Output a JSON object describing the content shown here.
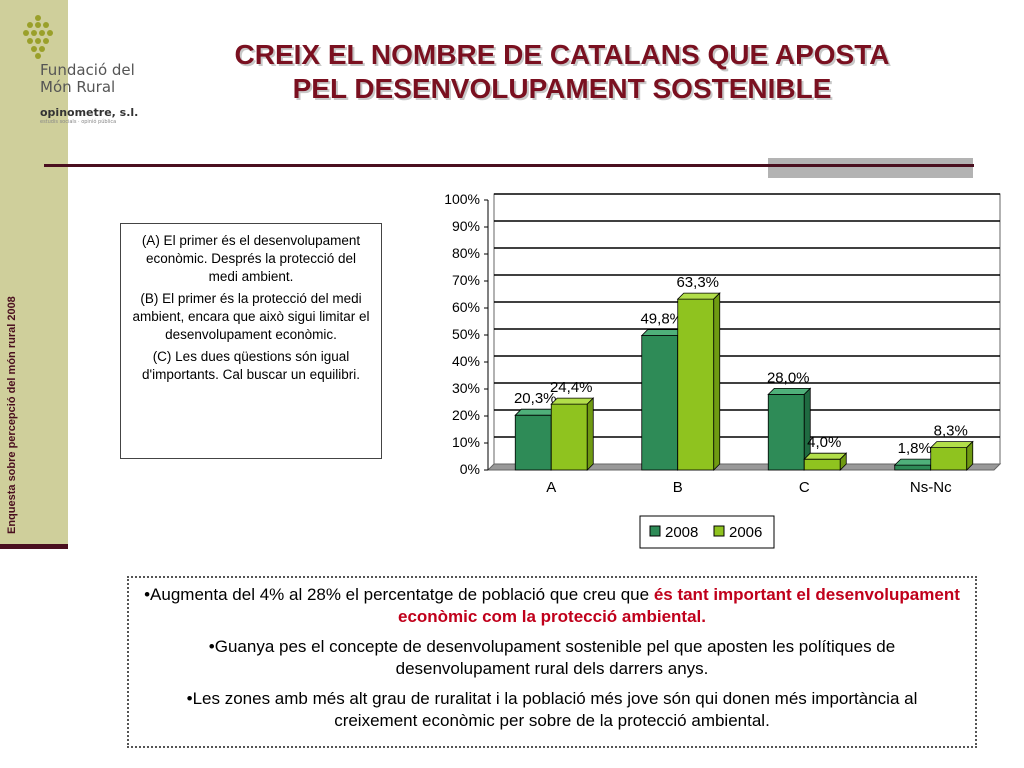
{
  "sidebar": {
    "vertical_text": "Enquesta sobre percepció del món rural 2008"
  },
  "logo": {
    "line1": "Fundació del",
    "line2": "Món Rural",
    "partner": "opinometre, s.l.",
    "partner_sub": "estudis socials · opinió pública"
  },
  "title": {
    "line1": "CREIX EL NOMBRE DE CATALANS QUE APOSTA",
    "line2": "PEL DESENVOLUPAMENT SOSTENIBLE"
  },
  "definitions": [
    "(A) El primer és el desenvolupament econòmic. Després la protecció del medi ambient.",
    "(B) El primer és la protecció del medi ambient, encara que això sigui limitar el desenvolupament econòmic.",
    "(C) Les dues qüestions són igual d'importants. Cal buscar un equilibri."
  ],
  "bullets": [
    {
      "prefix": "•Augmenta del 4% al 28% el percentatge de població que creu que ",
      "highlight": "és tant important el desenvolupament econòmic com la protecció ambiental.",
      "suffix": ""
    },
    {
      "prefix": "•Guanya pes el concepte de desenvolupament sostenible pel que aposten les polítiques de desenvolupament rural dels darrers anys.",
      "highlight": "",
      "suffix": ""
    },
    {
      "prefix": "•Les zones amb més alt grau de ruralitat i la població més jove són qui donen més importància al creixement econòmic per sobre de la protecció ambiental.",
      "highlight": "",
      "suffix": ""
    }
  ],
  "colors": {
    "series_2008": "#2e8b57",
    "series_2006": "#8fc31f",
    "title": "#7a1020",
    "highlight": "#c0001b"
  },
  "chart_data": {
    "type": "bar",
    "categories": [
      "A",
      "B",
      "C",
      "Ns-Nc"
    ],
    "series": [
      {
        "name": "2008",
        "values": [
          20.3,
          49.8,
          28.0,
          1.8
        ],
        "labels": [
          "20,3%",
          "49,8%",
          "28,0%",
          "1,8%"
        ]
      },
      {
        "name": "2006",
        "values": [
          24.4,
          63.3,
          4.0,
          8.3
        ],
        "labels": [
          "24,4%",
          "63,3%",
          "4,0%",
          "8,3%"
        ]
      }
    ],
    "y_ticks": [
      "0%",
      "10%",
      "20%",
      "30%",
      "40%",
      "50%",
      "60%",
      "70%",
      "80%",
      "90%",
      "100%"
    ],
    "ylim": [
      0,
      100
    ],
    "grid": true,
    "legend": "bottom"
  }
}
